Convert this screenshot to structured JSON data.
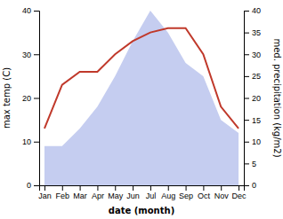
{
  "chart_data": {
    "type": "line",
    "categories": [
      "Jan",
      "Feb",
      "Mar",
      "Apr",
      "May",
      "Jun",
      "Jul",
      "Aug",
      "Sep",
      "Oct",
      "Nov",
      "Dec"
    ],
    "xlabel": "date (month)",
    "ylabel": "max temp (C)",
    "y2label": "med. precipitation (kg/m2)",
    "ylim": [
      0,
      40
    ],
    "yticks": [
      0,
      10,
      20,
      30,
      40
    ],
    "y2lim": [
      0,
      40
    ],
    "y2ticks": [
      0,
      5,
      10,
      15,
      20,
      25,
      30,
      35,
      40
    ],
    "series": [
      {
        "type": "line",
        "color": "#c0392b",
        "values": [
          13,
          23,
          26,
          26,
          30,
          33,
          35,
          36,
          36,
          30,
          18,
          13
        ]
      },
      {
        "type": "area",
        "color": "#c5cdf0",
        "axis": "y2",
        "values": [
          9,
          9,
          13,
          18,
          25,
          33,
          40,
          35,
          28,
          25,
          15,
          12
        ]
      }
    ]
  }
}
